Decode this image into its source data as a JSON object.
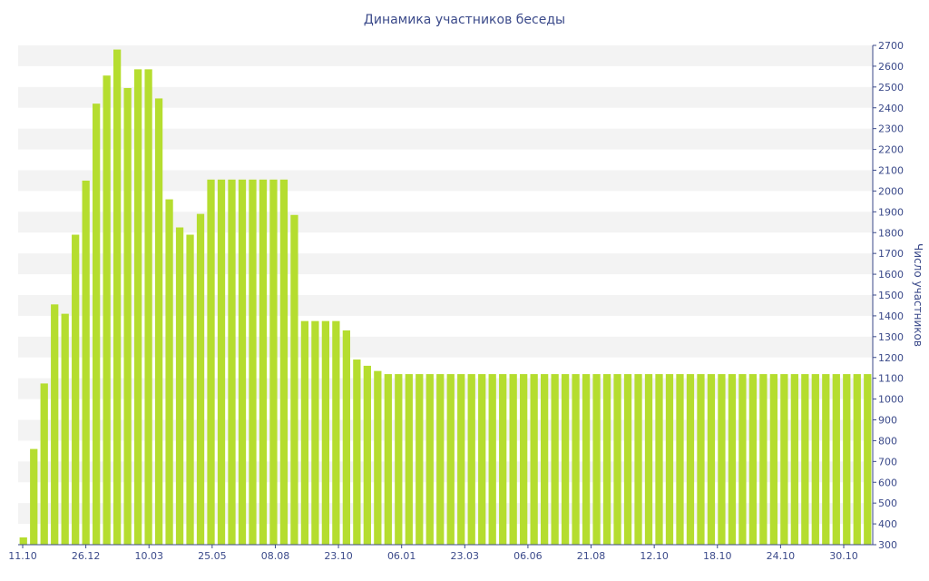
{
  "chart_data": {
    "type": "bar",
    "title": "Динамика участников беседы",
    "ylabel": "Число участников",
    "xlabel": "",
    "ylim": [
      300,
      2700
    ],
    "y_ticks": [
      300,
      400,
      500,
      600,
      700,
      800,
      900,
      1000,
      1100,
      1200,
      1300,
      1400,
      1500,
      1600,
      1700,
      1800,
      1900,
      2000,
      2100,
      2200,
      2300,
      2400,
      2500,
      2600,
      2700
    ],
    "y_axis_position": "right",
    "x_tick_labels": [
      "11.10",
      "26.12",
      "10.03",
      "25.05",
      "08.08",
      "23.10",
      "06.01",
      "23.03",
      "06.06",
      "21.08",
      "12.10",
      "18.10",
      "24.10",
      "30.10"
    ],
    "grid": "alternating horizontal bands",
    "values": [
      335,
      760,
      1075,
      1455,
      1410,
      1790,
      2050,
      2420,
      2555,
      2680,
      2495,
      2585,
      2585,
      2445,
      1960,
      1825,
      1790,
      1890,
      2055,
      2055,
      2055,
      2055,
      2055,
      2055,
      2055,
      2055,
      1885,
      1375,
      1375,
      1375,
      1375,
      1330,
      1190,
      1160,
      1135,
      1120,
      1120,
      1120,
      1120,
      1120,
      1120,
      1120,
      1120,
      1120,
      1120,
      1120,
      1120,
      1120,
      1120,
      1120,
      1120,
      1120,
      1120,
      1120,
      1120,
      1120,
      1120,
      1120,
      1120,
      1120,
      1120,
      1120,
      1120,
      1120,
      1120,
      1120,
      1120,
      1120,
      1120,
      1120,
      1120,
      1120,
      1120,
      1120,
      1120,
      1120,
      1120,
      1120,
      1120,
      1120,
      1120,
      1120
    ],
    "colors": {
      "bar": "#b5dd2f",
      "band": "#f3f3f3",
      "text": "#3b4a8a"
    }
  }
}
